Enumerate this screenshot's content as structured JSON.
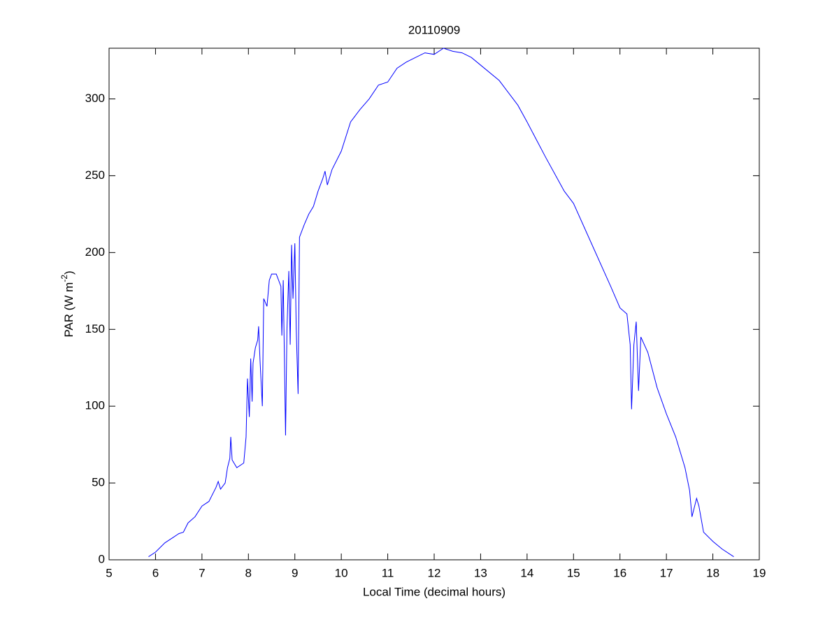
{
  "chart_data": {
    "type": "line",
    "title": "20110909",
    "xlabel": "Local Time (decimal hours)",
    "ylabel": [
      "PAR (W m",
      "-2",
      ")"
    ],
    "xlim": [
      5,
      19
    ],
    "xticks": [
      5,
      6,
      7,
      8,
      9,
      10,
      11,
      12,
      13,
      14,
      15,
      16,
      17,
      18,
      19
    ],
    "ylim": [
      0,
      333
    ],
    "yticks": [
      0,
      50,
      100,
      150,
      200,
      250,
      300
    ],
    "series": [
      {
        "color": "#0000ff",
        "x": [
          5.85,
          6.0,
          6.2,
          6.4,
          6.5,
          6.6,
          6.7,
          6.85,
          7.0,
          7.15,
          7.3,
          7.35,
          7.4,
          7.5,
          7.55,
          7.6,
          7.62,
          7.65,
          7.75,
          7.9,
          7.95,
          7.98,
          8.02,
          8.05,
          8.08,
          8.1,
          8.15,
          8.2,
          8.22,
          8.25,
          8.3,
          8.33,
          8.4,
          8.45,
          8.5,
          8.6,
          8.7,
          8.72,
          8.75,
          8.8,
          8.83,
          8.87,
          8.9,
          8.93,
          8.96,
          9.0,
          9.03,
          9.07,
          9.1,
          9.2,
          9.3,
          9.4,
          9.5,
          9.6,
          9.65,
          9.7,
          9.8,
          10.0,
          10.2,
          10.4,
          10.6,
          10.8,
          11.0,
          11.2,
          11.4,
          11.6,
          11.8,
          12.0,
          12.2,
          12.4,
          12.6,
          12.8,
          13.0,
          13.4,
          13.8,
          14.0,
          14.4,
          14.8,
          15.0,
          15.4,
          15.8,
          16.0,
          16.15,
          16.22,
          16.25,
          16.3,
          16.35,
          16.4,
          16.45,
          16.6,
          16.8,
          17.0,
          17.2,
          17.4,
          17.5,
          17.55,
          17.65,
          17.7,
          17.8,
          18.0,
          18.2,
          18.45
        ],
        "values": [
          2,
          5,
          11,
          15,
          17,
          18,
          24,
          28,
          35,
          38,
          47,
          51,
          46,
          50,
          60,
          66,
          80,
          65,
          60,
          63,
          80,
          118,
          93,
          131,
          103,
          128,
          138,
          143,
          152,
          130,
          100,
          170,
          165,
          182,
          186,
          186,
          178,
          146,
          182,
          81,
          150,
          188,
          140,
          205,
          170,
          206,
          150,
          108,
          210,
          218,
          225,
          230,
          240,
          248,
          253,
          244,
          254,
          266,
          285,
          293,
          300,
          309,
          311,
          320,
          324,
          327,
          330,
          329,
          333,
          331,
          330,
          327,
          322,
          312,
          296,
          285,
          262,
          240,
          232,
          205,
          178,
          164,
          160,
          140,
          98,
          140,
          155,
          110,
          145,
          135,
          112,
          95,
          80,
          60,
          45,
          28,
          40,
          35,
          18,
          12,
          7,
          2
        ]
      }
    ]
  }
}
